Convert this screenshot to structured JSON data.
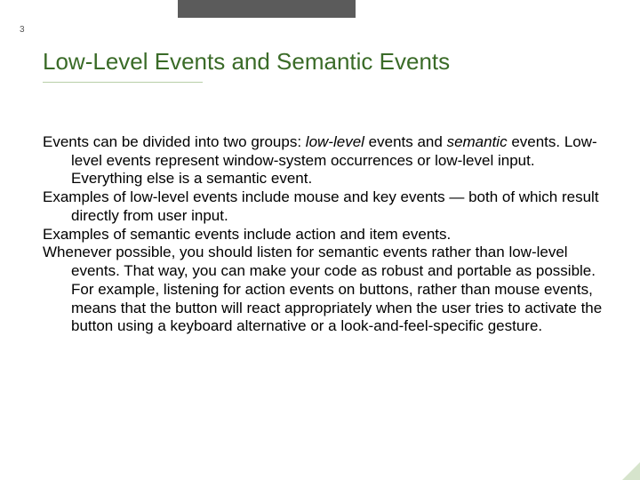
{
  "colors": {
    "title": "#3a6b28",
    "body": "#000000",
    "topbar": "#5b5b5b",
    "rule": "#b8cfa8",
    "pagenum": "#555555",
    "corner": "#d6e4cc",
    "background": "#ffffff"
  },
  "page_number": "3",
  "title": "Low-Level Events and Semantic Events",
  "paragraphs": {
    "p1_a": "Events can be divided into two groups: ",
    "p1_i1": "low-level",
    "p1_b": " events and ",
    "p1_i2": "semantic",
    "p1_c": " events. Low-level events represent window-system occurrences or low-level input. Everything else is a semantic event.",
    "p2": "Examples of low-level events include mouse and key events — both of which result directly from user input.",
    "p3": "Examples of semantic events include action and item events.",
    "p4": "Whenever possible, you should listen for semantic events rather than low-level events. That way, you can make your code as robust and portable as possible. For example, listening for action events on buttons, rather than mouse events, means that the button will react appropriately when the user tries to activate the button using a keyboard alternative or a look-and-feel-specific gesture."
  }
}
